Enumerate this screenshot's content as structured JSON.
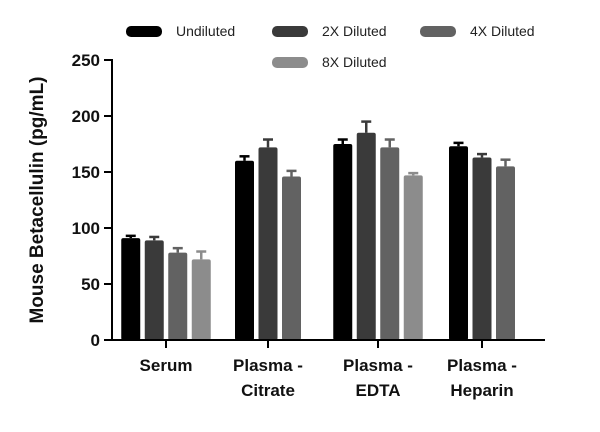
{
  "chart_data": {
    "type": "bar",
    "title": "",
    "xlabel": "",
    "ylabel": "Mouse Betacellulin (pg/mL)",
    "ylim": [
      0,
      250
    ],
    "yticks": [
      0,
      50,
      100,
      150,
      200,
      250
    ],
    "legend_position": "top",
    "categories": [
      {
        "line1": "Serum",
        "line2": ""
      },
      {
        "line1": "Plasma -",
        "line2": "Citrate"
      },
      {
        "line1": "Plasma -",
        "line2": "EDTA"
      },
      {
        "line1": "Plasma -",
        "line2": "Heparin"
      }
    ],
    "series": [
      {
        "name": "Undiluted",
        "color": "#000000",
        "values": [
          91,
          160,
          175,
          173
        ],
        "errors": [
          2,
          4,
          4,
          3
        ]
      },
      {
        "name": "2X Diluted",
        "color": "#3a3a3a",
        "values": [
          89,
          172,
          185,
          163
        ],
        "errors": [
          3,
          7,
          10,
          3
        ]
      },
      {
        "name": "4X Diluted",
        "color": "#626262",
        "values": [
          78,
          146,
          172,
          155
        ],
        "errors": [
          4,
          5,
          7,
          6
        ]
      },
      {
        "name": "8X Diluted",
        "color": "#8c8c8c",
        "values": [
          72,
          null,
          147,
          null
        ],
        "errors": [
          7,
          null,
          2,
          null
        ]
      }
    ]
  }
}
